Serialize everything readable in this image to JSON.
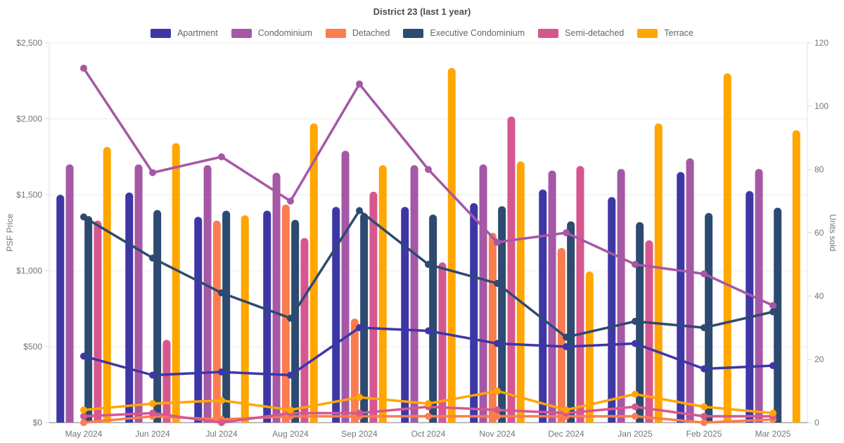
{
  "chart_data": {
    "type": "bar-line-combo",
    "title": "District 23 (last 1 year)",
    "categories": [
      "May 2024",
      "Jun 2024",
      "Jul 2024",
      "Aug 2024",
      "Sep 2024",
      "Oct 2024",
      "Nov 2024",
      "Dec 2024",
      "Jan 2025",
      "Feb 2025",
      "Mar 2025"
    ],
    "left_axis": {
      "label": "PSF Price",
      "min": 0,
      "max": 2500,
      "tick_labels": [
        "$0",
        "$500",
        "$1,000",
        "$1,500",
        "$2,000",
        "$2,500"
      ],
      "tick_values": [
        0,
        500,
        1000,
        1500,
        2000,
        2500
      ]
    },
    "right_axis": {
      "label": "Units sold",
      "min": 0,
      "max": 120,
      "tick_labels": [
        "0",
        "20",
        "40",
        "60",
        "80",
        "100",
        "120"
      ],
      "tick_values": [
        0,
        20,
        40,
        60,
        80,
        100,
        120
      ]
    },
    "grid": "horizontal",
    "legend_position": "top",
    "series": [
      {
        "name": "Apartment",
        "color": "#3d37a6",
        "bars_psf": [
          1500,
          1515,
          1355,
          1395,
          1420,
          1420,
          1445,
          1535,
          1485,
          1650,
          1525
        ],
        "line_units": [
          21,
          15,
          16,
          15,
          30,
          29,
          25,
          24,
          25,
          17,
          18
        ]
      },
      {
        "name": "Condominium",
        "color": "#a558a5",
        "bars_psf": [
          1700,
          1700,
          1695,
          1645,
          1790,
          1695,
          1700,
          1660,
          1670,
          1740,
          1670
        ],
        "line_units": [
          112,
          79,
          84,
          70,
          107,
          80,
          57,
          60,
          50,
          47,
          37
        ]
      },
      {
        "name": "Detached",
        "color": "#fa7d4f",
        "bars_psf": [
          null,
          null,
          1330,
          1435,
          685,
          null,
          1250,
          1150,
          null,
          null,
          null
        ],
        "line_units": [
          0,
          2,
          1,
          2,
          2,
          2,
          2,
          2,
          2,
          0,
          1
        ]
      },
      {
        "name": "Executive Condominium",
        "color": "#2d4a70",
        "bars_psf": [
          1360,
          1400,
          1395,
          1335,
          1380,
          1370,
          1425,
          1325,
          1320,
          1380,
          1415
        ],
        "line_units": [
          65,
          52,
          41,
          33,
          67,
          50,
          44,
          27,
          32,
          30,
          35
        ]
      },
      {
        "name": "Semi-detached",
        "color": "#d6578f",
        "bars_psf": [
          1330,
          545,
          null,
          1215,
          1520,
          1055,
          2015,
          1690,
          1200,
          null,
          null
        ],
        "line_units": [
          2,
          3,
          0,
          3,
          3,
          5,
          4,
          3,
          5,
          2,
          2
        ]
      },
      {
        "name": "Terrace",
        "color": "#ffa600",
        "bars_psf": [
          1815,
          1840,
          1365,
          1970,
          1695,
          2335,
          1720,
          995,
          1970,
          2300,
          1925
        ],
        "line_units": [
          4,
          6,
          7,
          4,
          8,
          6,
          10,
          4,
          9,
          5,
          3
        ]
      }
    ]
  }
}
